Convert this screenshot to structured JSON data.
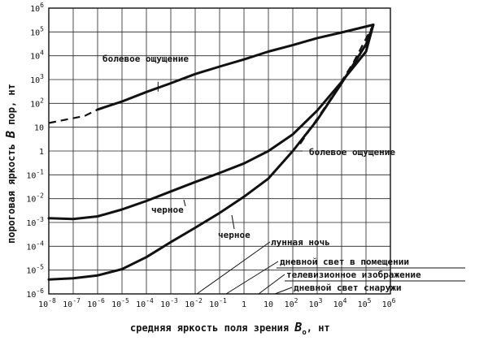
{
  "chart_data": {
    "type": "line",
    "xlabel": "средняя яркость поля зрения",
    "xlabel_symbol": "B",
    "xlabel_subscript": "о",
    "xlabel_unit": ", нт",
    "ylabel": "пороговая яркость",
    "ylabel_symbol": "B",
    "ylabel_subscript": "пор",
    "ylabel_unit": ", нт",
    "x_scale": "log",
    "y_scale": "log",
    "xlim": [
      1e-08,
      1000000.0
    ],
    "ylim": [
      1e-06,
      1000000.0
    ],
    "grid": true,
    "x_ticks": [
      {
        "base": "10",
        "exp": "-8"
      },
      {
        "base": "10",
        "exp": "-7"
      },
      {
        "base": "10",
        "exp": "-6"
      },
      {
        "base": "10",
        "exp": "-5"
      },
      {
        "base": "10",
        "exp": "-4"
      },
      {
        "base": "10",
        "exp": "-3"
      },
      {
        "base": "10",
        "exp": "-2"
      },
      {
        "base": "10",
        "exp": "-1"
      },
      {
        "base": "1",
        "exp": ""
      },
      {
        "base": "10",
        "exp": ""
      },
      {
        "base": "10",
        "exp": "2"
      },
      {
        "base": "10",
        "exp": "3"
      },
      {
        "base": "10",
        "exp": "4"
      },
      {
        "base": "10",
        "exp": "5"
      },
      {
        "base": "10",
        "exp": "6"
      }
    ],
    "y_ticks": [
      {
        "base": "10",
        "exp": "6"
      },
      {
        "base": "10",
        "exp": "5"
      },
      {
        "base": "10",
        "exp": "4"
      },
      {
        "base": "10",
        "exp": "3"
      },
      {
        "base": "10",
        "exp": "2"
      },
      {
        "base": "10",
        "exp": ""
      },
      {
        "base": "1",
        "exp": ""
      },
      {
        "base": "10",
        "exp": "-1"
      },
      {
        "base": "10",
        "exp": "-2"
      },
      {
        "base": "10",
        "exp": "-3"
      },
      {
        "base": "10",
        "exp": "-4"
      },
      {
        "base": "10",
        "exp": "-5"
      },
      {
        "base": "10",
        "exp": "-6"
      }
    ],
    "series": [
      {
        "label": "болевое ощущение",
        "style": "thick",
        "dashed_segment": [
          [
            1e-08,
            15
          ],
          [
            3e-07,
            30
          ],
          [
            1e-06,
            55
          ]
        ],
        "points": [
          [
            1e-06,
            55
          ],
          [
            1e-05,
            120
          ],
          [
            0.0001,
            300
          ],
          [
            0.001,
            700
          ],
          [
            0.01,
            1700
          ],
          [
            0.1,
            3500
          ],
          [
            1,
            7000
          ],
          [
            10,
            15000
          ],
          [
            100,
            28000
          ],
          [
            1000,
            55000
          ],
          [
            10000.0,
            95000
          ],
          [
            200000.0,
            200000
          ]
        ]
      },
      {
        "label": "черное",
        "style": "thick",
        "points": [
          [
            1e-08,
            0.0015
          ],
          [
            1e-07,
            0.0014
          ],
          [
            1e-06,
            0.0018
          ],
          [
            1e-05,
            0.0035
          ],
          [
            0.0001,
            0.008
          ],
          [
            0.001,
            0.02
          ],
          [
            0.01,
            0.05
          ],
          [
            0.1,
            0.12
          ],
          [
            1,
            0.3
          ],
          [
            10,
            1
          ],
          [
            100,
            5
          ],
          [
            1000,
            50
          ],
          [
            10000.0,
            800
          ],
          [
            100000.0,
            15000
          ],
          [
            200000.0,
            200000
          ]
        ]
      },
      {
        "label": "черное",
        "style": "thick",
        "points": [
          [
            1e-08,
            4e-06
          ],
          [
            1e-07,
            4.5e-06
          ],
          [
            1e-06,
            6e-06
          ],
          [
            1e-05,
            1.1e-05
          ],
          [
            0.0001,
            3.5e-05
          ],
          [
            0.001,
            0.00015
          ],
          [
            0.01,
            0.0006
          ],
          [
            0.1,
            0.0025
          ],
          [
            1,
            0.012
          ],
          [
            10,
            0.07
          ],
          [
            100,
            1
          ],
          [
            1000,
            20
          ],
          [
            10000.0,
            700
          ],
          [
            100000.0,
            30000
          ],
          [
            200000.0,
            200000
          ]
        ],
        "dashed_segment": [
          [
            200.0,
            2
          ],
          [
            3000.0,
            120
          ],
          [
            30000.0,
            5000
          ],
          [
            200000.0,
            200000
          ]
        ]
      }
    ],
    "annotations": [
      {
        "id": "pain_top",
        "text": "болевое ощущение"
      },
      {
        "id": "pain_mid",
        "text": "болевое ощущение"
      },
      {
        "id": "black_mid",
        "text": "черное"
      },
      {
        "id": "black_low",
        "text": "черное"
      },
      {
        "id": "moon",
        "text": "лунная ночь"
      },
      {
        "id": "indoor",
        "text": "дневной свет в помещении"
      },
      {
        "id": "tv",
        "text": "телевизионное изображение"
      },
      {
        "id": "outdoor",
        "text": "дневной свет снаружи"
      }
    ]
  }
}
